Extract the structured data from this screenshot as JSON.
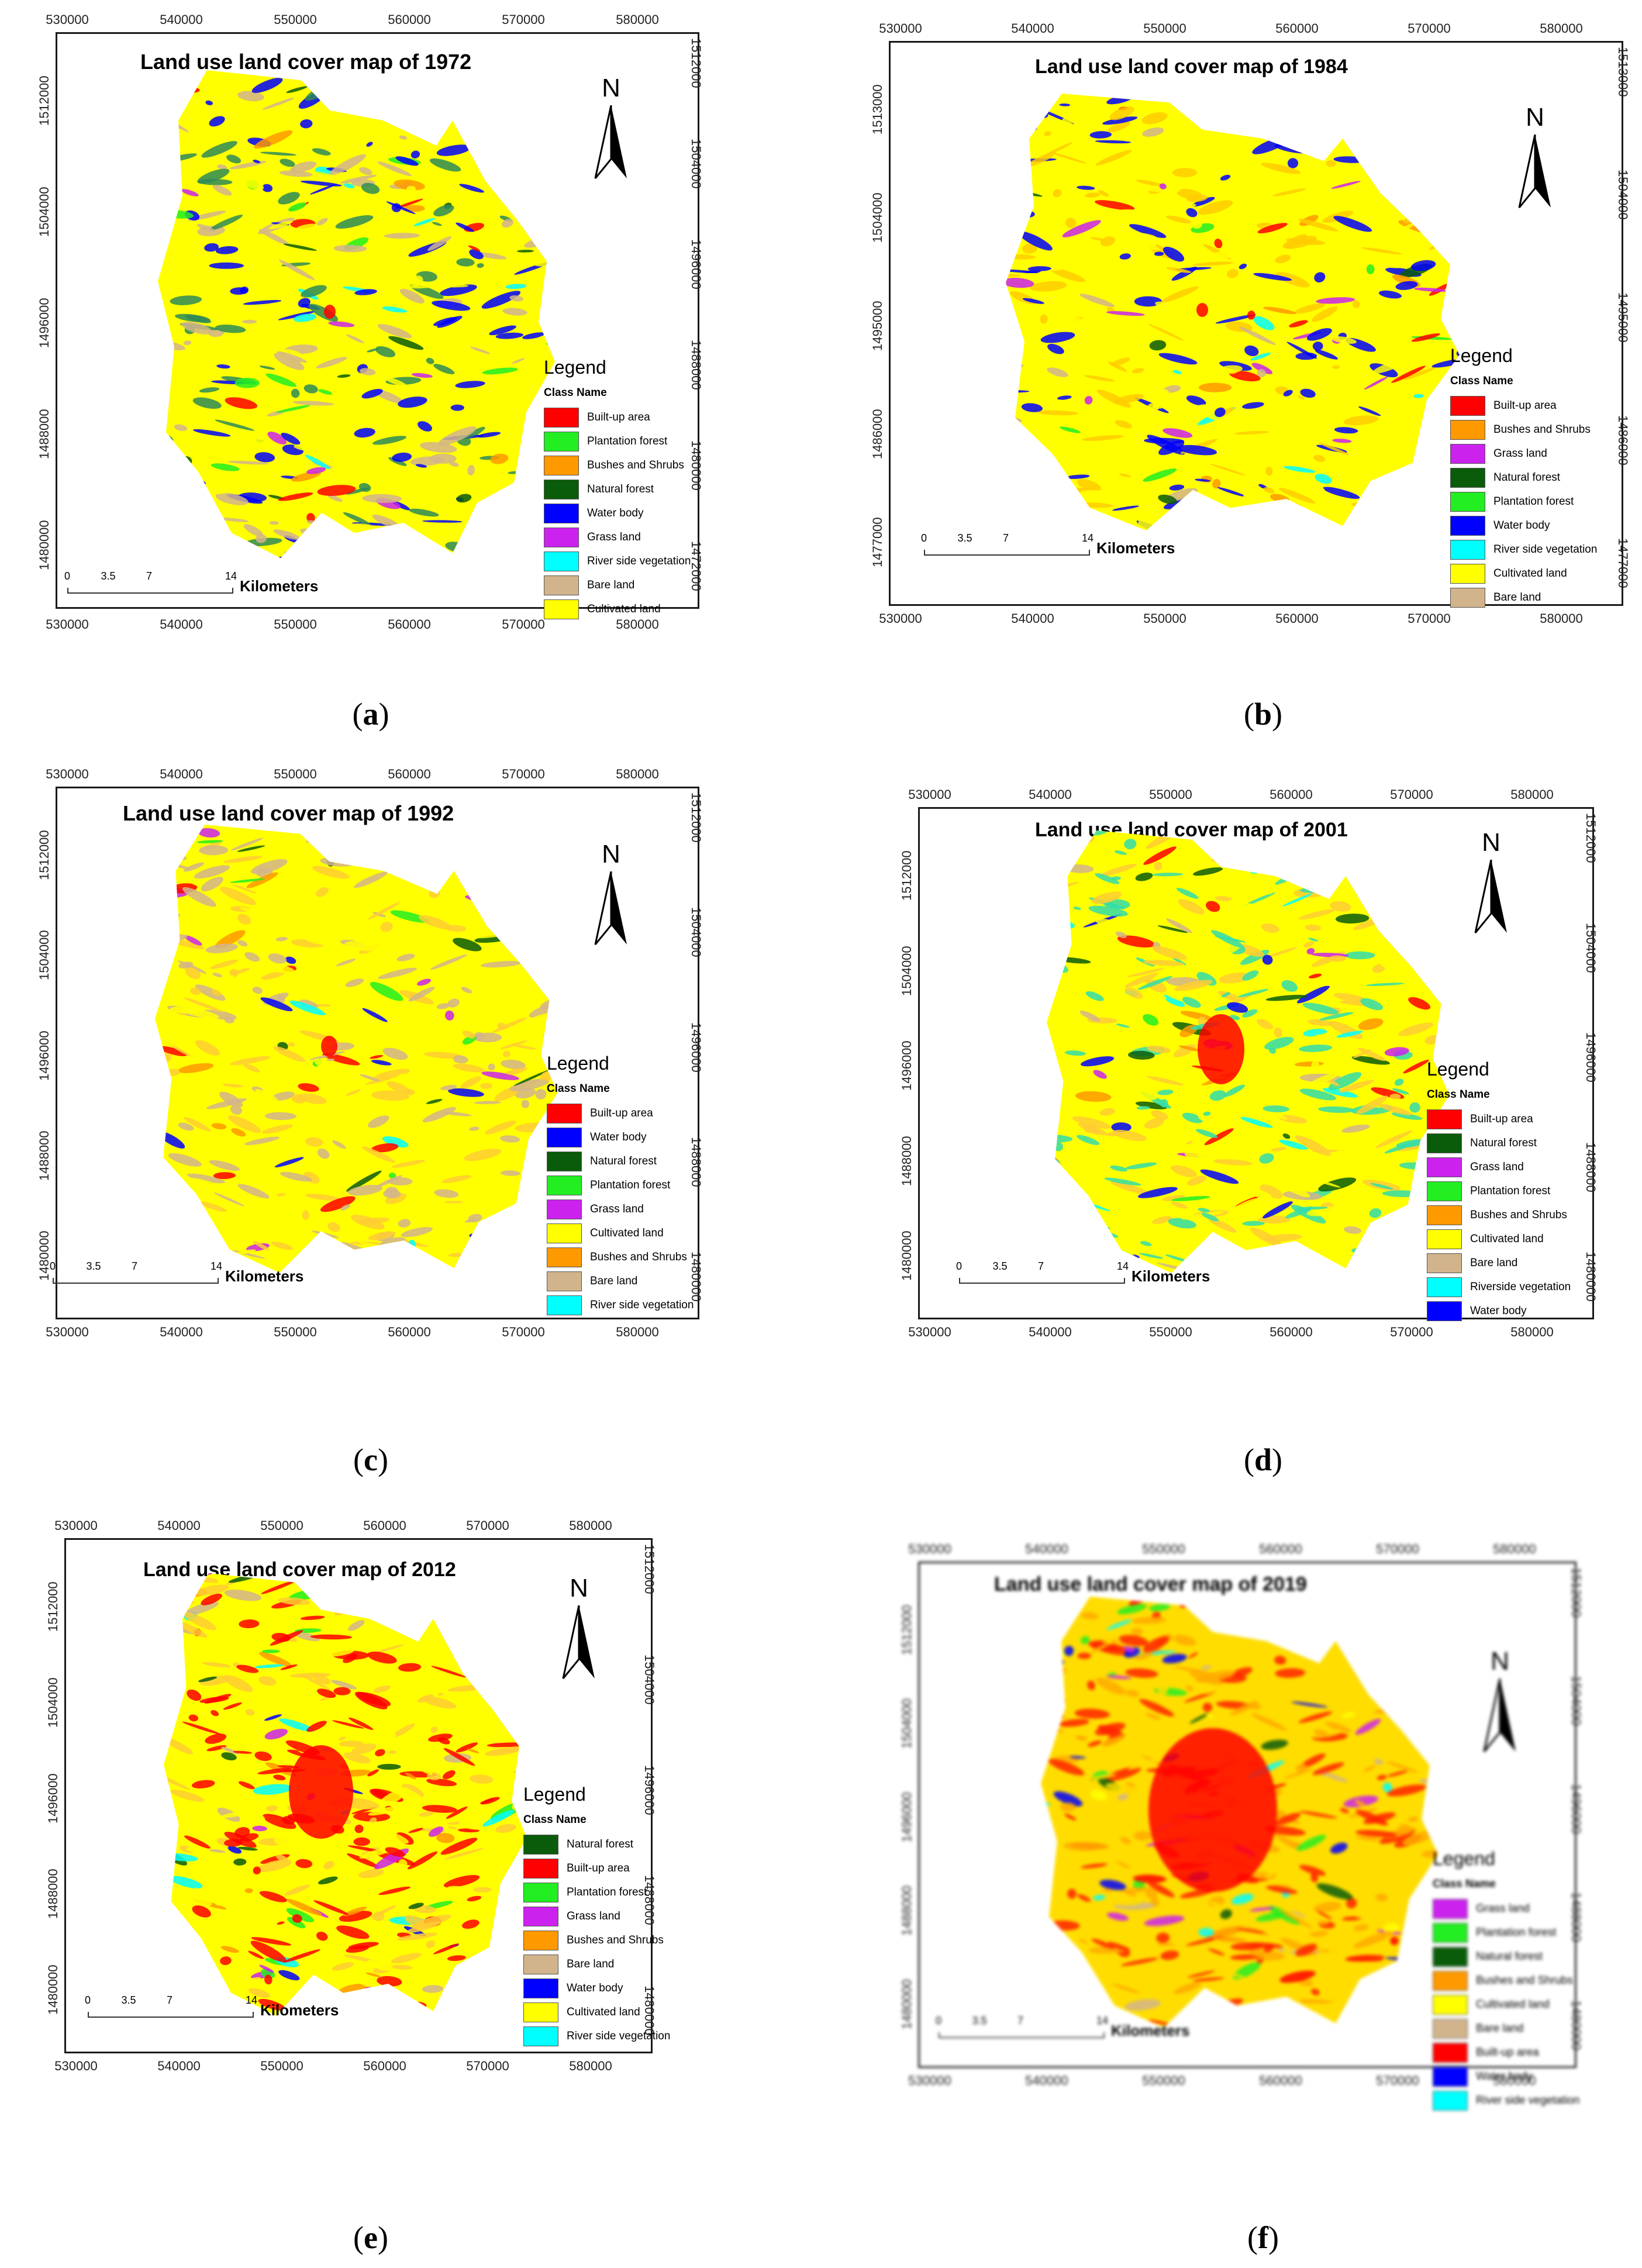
{
  "figure": {
    "panels": [
      {
        "id": "a",
        "caption_letter": "a",
        "title": "Land use land cover map of 1972",
        "x_ticks": [
          "530000",
          "540000",
          "550000",
          "560000",
          "570000",
          "580000"
        ],
        "y_ticks": [
          "1512000",
          "1504000",
          "1496000",
          "1488000",
          "1480000"
        ],
        "y_ticks_right": [
          "1512000",
          "1504000",
          "1496000",
          "1488000",
          "1480000",
          "1472000"
        ],
        "north_label": "N",
        "legend_title": "Legend",
        "legend_subtitle": "Class Name",
        "legend": [
          {
            "label": "Built-up area",
            "color": "#ff0000"
          },
          {
            "label": "Plantation forest",
            "color": "#22ee22"
          },
          {
            "label": "Bushes and Shrubs",
            "color": "#ff9900"
          },
          {
            "label": "Natural forest",
            "color": "#0a5c0a"
          },
          {
            "label": "Water body",
            "color": "#0000ff"
          },
          {
            "label": "Grass land",
            "color": "#cc22ee"
          },
          {
            "label": "River side vegetation",
            "color": "#00ffff"
          },
          {
            "label": "Bare land",
            "color": "#d2b48c"
          },
          {
            "label": "Cultivated land",
            "color": "#ffff00"
          }
        ],
        "scale_ticks": [
          "0",
          "3.5",
          "7",
          "14"
        ],
        "scale_unit": "Kilometers",
        "dominant_colors": [
          "#ffff00",
          "#0000ff",
          "#2e8b57",
          "#d2b48c"
        ]
      },
      {
        "id": "b",
        "caption_letter": "b",
        "title": "Land use land cover map  of 1984",
        "x_ticks": [
          "530000",
          "540000",
          "550000",
          "560000",
          "570000",
          "580000"
        ],
        "y_ticks": [
          "1513000",
          "1504000",
          "1495000",
          "1486000",
          "1477000"
        ],
        "y_ticks_right": [
          "1513000",
          "1504000",
          "1495000",
          "1486000",
          "1477000"
        ],
        "north_label": "N",
        "legend_title": "Legend",
        "legend_subtitle": "Class Name",
        "legend": [
          {
            "label": "Built-up area",
            "color": "#ff0000"
          },
          {
            "label": "Bushes and Shrubs",
            "color": "#ff9900"
          },
          {
            "label": "Grass land",
            "color": "#cc22ee"
          },
          {
            "label": "Natural forest",
            "color": "#0a5c0a"
          },
          {
            "label": "Plantation forest",
            "color": "#22ee22"
          },
          {
            "label": "Water body",
            "color": "#0000ff"
          },
          {
            "label": "River side vegetation",
            "color": "#00ffff"
          },
          {
            "label": "Cultivated land",
            "color": "#ffff00"
          },
          {
            "label": "Bare land",
            "color": "#d2b48c"
          }
        ],
        "scale_ticks": [
          "0",
          "3.5",
          "7",
          "14"
        ],
        "scale_unit": "Kilometers",
        "dominant_colors": [
          "#ffff00",
          "#0000ff",
          "#ffcc00"
        ]
      },
      {
        "id": "c",
        "caption_letter": "c",
        "title": "Land use land cover map of 1992",
        "x_ticks": [
          "530000",
          "540000",
          "550000",
          "560000",
          "570000",
          "580000"
        ],
        "y_ticks": [
          "1512000",
          "1504000",
          "1496000",
          "1488000",
          "1480000"
        ],
        "y_ticks_right": [
          "1512000",
          "1504000",
          "1496000",
          "1488000",
          "1480000"
        ],
        "north_label": "N",
        "legend_title": "Legend",
        "legend_subtitle": "Class Name",
        "legend": [
          {
            "label": "Built-up area",
            "color": "#ff0000"
          },
          {
            "label": "Water body",
            "color": "#0000ff"
          },
          {
            "label": "Natural forest",
            "color": "#0a5c0a"
          },
          {
            "label": "Plantation forest",
            "color": "#22ee22"
          },
          {
            "label": "Grass land",
            "color": "#cc22ee"
          },
          {
            "label": "Cultivated land",
            "color": "#ffff00"
          },
          {
            "label": "Bushes and Shrubs",
            "color": "#ff9900"
          },
          {
            "label": "Bare land",
            "color": "#d2b48c"
          },
          {
            "label": "River side vegetation",
            "color": "#00ffff"
          }
        ],
        "scale_ticks": [
          "0",
          "3.5",
          "7",
          "14"
        ],
        "scale_unit": "Kilometers",
        "dominant_colors": [
          "#ffff00",
          "#ffcc33",
          "#d2b48c"
        ]
      },
      {
        "id": "d",
        "caption_letter": "d",
        "title": "Land use land cover map of 2001",
        "x_ticks": [
          "530000",
          "540000",
          "550000",
          "560000",
          "570000",
          "580000"
        ],
        "y_ticks": [
          "1512000",
          "1504000",
          "1496000",
          "1488000",
          "1480000"
        ],
        "y_ticks_right": [
          "1512000",
          "1504000",
          "1496000",
          "1488000",
          "1480000"
        ],
        "north_label": "N",
        "legend_title": "Legend",
        "legend_subtitle": "Class Name",
        "legend": [
          {
            "label": "Built-up area",
            "color": "#ff0000"
          },
          {
            "label": "Natural forest",
            "color": "#0a5c0a"
          },
          {
            "label": "Grass land",
            "color": "#cc22ee"
          },
          {
            "label": "Plantation forest",
            "color": "#22ee22"
          },
          {
            "label": "Bushes and Shrubs",
            "color": "#ff9900"
          },
          {
            "label": "Cultivated land",
            "color": "#ffff00"
          },
          {
            "label": "Bare land",
            "color": "#d2b48c"
          },
          {
            "label": "Riverside vegetation",
            "color": "#00ffff"
          },
          {
            "label": "Water body",
            "color": "#0000ff"
          }
        ],
        "scale_ticks": [
          "0",
          "3.5",
          "7",
          "14"
        ],
        "scale_unit": "Kilometers",
        "dominant_colors": [
          "#ffff00",
          "#33ddaa",
          "#ffcc33"
        ]
      },
      {
        "id": "e",
        "caption_letter": "e",
        "title": "Land use land cover map of 2012",
        "x_ticks": [
          "530000",
          "540000",
          "550000",
          "560000",
          "570000",
          "580000"
        ],
        "y_ticks": [
          "1512000",
          "1504000",
          "1496000",
          "1488000",
          "1480000"
        ],
        "y_ticks_right": [
          "1512000",
          "1504000",
          "1496000",
          "1488000",
          "1480000"
        ],
        "north_label": "N",
        "legend_title": "Legend",
        "legend_subtitle": "Class Name",
        "legend": [
          {
            "label": "Natural forest",
            "color": "#0a5c0a"
          },
          {
            "label": "Built-up area",
            "color": "#ff0000"
          },
          {
            "label": "Plantation forest",
            "color": "#22ee22"
          },
          {
            "label": "Grass land",
            "color": "#cc22ee"
          },
          {
            "label": "Bushes and Shrubs",
            "color": "#ff9900"
          },
          {
            "label": "Bare land",
            "color": "#d2b48c"
          },
          {
            "label": "Water body",
            "color": "#0000ff"
          },
          {
            "label": "Cultivated land",
            "color": "#ffff00"
          },
          {
            "label": "River side vegetation",
            "color": "#00ffff"
          }
        ],
        "scale_ticks": [
          "0",
          "3.5",
          "7",
          "14"
        ],
        "scale_unit": "Kilometers",
        "dominant_colors": [
          "#ffff00",
          "#ff0000",
          "#ffcc33"
        ]
      },
      {
        "id": "f",
        "caption_letter": "f",
        "title": "Land use land cover map of 2019",
        "x_ticks": [
          "530000",
          "540000",
          "550000",
          "560000",
          "570000",
          "580000"
        ],
        "y_ticks": [
          "1512000",
          "1504000",
          "1496000",
          "1488000",
          "1480000"
        ],
        "y_ticks_right": [
          "1512000",
          "1504000",
          "1496000",
          "1488000",
          "1480000"
        ],
        "north_label": "N",
        "legend_title": "Legend",
        "legend_subtitle": "Class Name",
        "legend": [
          {
            "label": "Grass land",
            "color": "#cc22ee"
          },
          {
            "label": "Plantation forest",
            "color": "#22ee22"
          },
          {
            "label": "Natural forest",
            "color": "#0a5c0a"
          },
          {
            "label": "Bushes and Shrubs",
            "color": "#ff9900"
          },
          {
            "label": "Cultivated land",
            "color": "#ffff00"
          },
          {
            "label": "Bare land",
            "color": "#d2b48c"
          },
          {
            "label": "Built-up area",
            "color": "#ff0000"
          },
          {
            "label": "Water body",
            "color": "#0000ff"
          },
          {
            "label": "River side vegetation",
            "color": "#00ffff"
          }
        ],
        "scale_ticks": [
          "0",
          "3.5",
          "7",
          "14"
        ],
        "scale_unit": "Kilometers",
        "dominant_colors": [
          "#ffdd00",
          "#ff2200",
          "#ffaa00"
        ]
      }
    ]
  }
}
